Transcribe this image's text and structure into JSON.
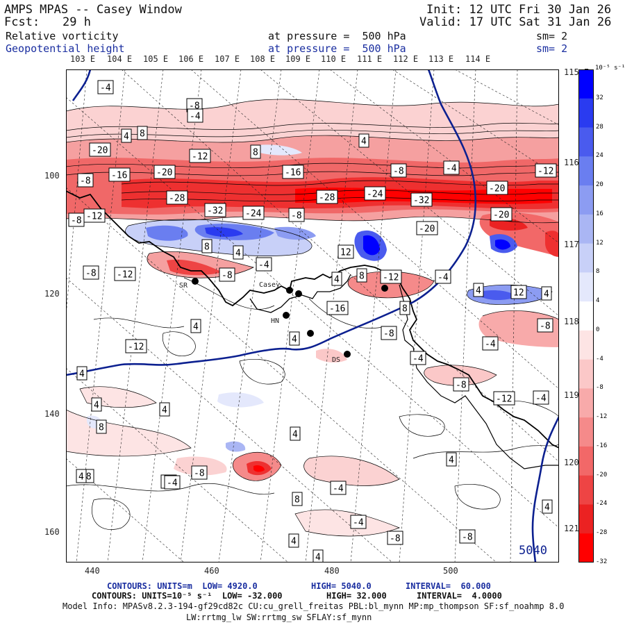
{
  "header": {
    "title": "AMPS MPAS -- Casey Window",
    "init": "Init: 12 UTC Fri 30 Jan 26",
    "fcst_label": "Fcst:",
    "fcst_value": "29 h",
    "valid": "Valid: 17 UTC Sat 31 Jan 26",
    "field1_name": "Relative vorticity",
    "field1_level": "at pressure =  500 hPa",
    "field1_sm": "sm= 2",
    "field2_name": "Geopotential height",
    "field2_level": "at pressure =  500 hPa",
    "field2_sm": "sm= 2"
  },
  "map": {
    "top_lon_labels": [
      "103 E",
      "104 E",
      "105 E",
      "106 E",
      "107 E",
      "108 E",
      "109 E",
      "110 E",
      "111 E",
      "112 E",
      "113 E",
      "114 E"
    ],
    "right_lon_labels": [
      "115 E",
      "116 E",
      "117 E",
      "118 E",
      "119 E",
      "120 E",
      "121 E"
    ],
    "left_axis_labels": [
      "100",
      "120",
      "140",
      "160"
    ],
    "bottom_axis_labels": [
      "440",
      "460",
      "480",
      "500"
    ],
    "stations": [
      "SR",
      "Casey",
      "HN",
      "DS"
    ],
    "contour_labels_neg": [
      "-4",
      "-8",
      "-4",
      "-20",
      "-12",
      "-16",
      "-20",
      "-16",
      "-8",
      "-4",
      "-12",
      "-8",
      "-28",
      "-32",
      "-24",
      "-8",
      "-28",
      "-24",
      "-32",
      "-20",
      "-20",
      "-12",
      "-20",
      "-8",
      "-12",
      "-8",
      "-4",
      "-12",
      "-16",
      "-8",
      "-12",
      "-4",
      "-8",
      "-4",
      "-8",
      "-12",
      "-8",
      "-4",
      "-8",
      "-4",
      "-4",
      "-8",
      "-4",
      "-4",
      "-8",
      "-4",
      "-8"
    ],
    "contour_labels_pos": [
      "4",
      "8",
      "8",
      "4",
      "8",
      "4",
      "4",
      "12",
      "8",
      "4",
      "12",
      "4",
      "4",
      "8",
      "4",
      "4",
      "4",
      "4",
      "8",
      "4",
      "8",
      "4",
      "4",
      "4",
      "4",
      "4"
    ],
    "height_label": "5040"
  },
  "colorbar": {
    "units": "10⁻⁵ s⁻¹",
    "ticks": [
      "32",
      "28",
      "24",
      "20",
      "16",
      "12",
      "8",
      "4",
      "0",
      "-4",
      "-8",
      "-12",
      "-16",
      "-20",
      "-24",
      "-28",
      "-32"
    ],
    "colors": [
      "#0000ff",
      "#2a3bf0",
      "#4a5bee",
      "#6a7ef0",
      "#8c9cf2",
      "#aab6f4",
      "#c8d0f8",
      "#e4e8fc",
      "#ffffff",
      "#fde4e4",
      "#fbc8c8",
      "#f8aaaa",
      "#f58a8a",
      "#f26868",
      "#ee4444",
      "#eb2222",
      "#ff0000"
    ]
  },
  "footer": {
    "line1_a": "CONTOURS: UNITS=m  LOW= 4920.0",
    "line1_b": "HIGH= 5040.0",
    "line1_c": "INTERVAL=  60.000",
    "line2_a": "CONTOURS: UNITS=10⁻⁵ s⁻¹  LOW= -32.000",
    "line2_b": "HIGH= 32.000",
    "line2_c": "INTERVAL=  4.0000",
    "model_info": "Model Info: MPASv8.2.3-194-gf29cd82c CU:cu_grell_freitas PBL:bl_mynn MP:mp_thompson SF:sf_noahmp 8.0",
    "model_info2": "LW:rrtmg_lw SW:rrtmg_sw SFLAY:sf_mynn"
  }
}
